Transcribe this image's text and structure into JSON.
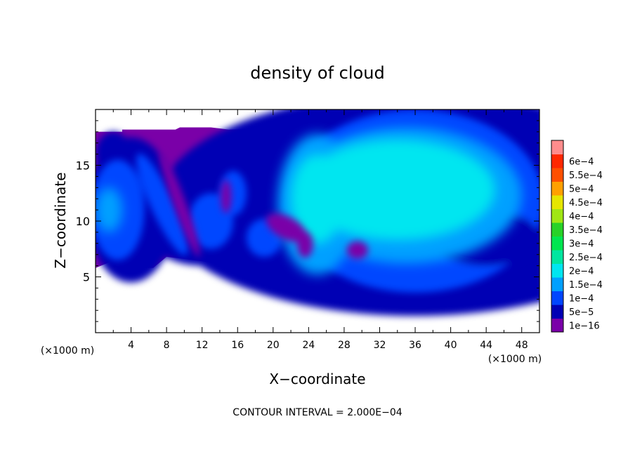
{
  "chart_data": {
    "type": "heatmap",
    "title": "density of cloud",
    "xlabel": "X−coordinate",
    "ylabel": "Z−coordinate",
    "x_unit_left": "(×1000 m)",
    "x_unit_right": "(×1000 m)",
    "xlim": [
      0,
      50
    ],
    "ylim": [
      0,
      20
    ],
    "x_ticks": [
      4,
      8,
      12,
      16,
      20,
      24,
      28,
      32,
      36,
      40,
      44,
      48
    ],
    "y_ticks": [
      5,
      10,
      15
    ],
    "footer": "CONTOUR INTERVAL = 2.000E−04",
    "colorbar": {
      "levels": [
        "1e−16",
        "5e−5",
        "1e−4",
        "1.5e−4",
        "2e−4",
        "2.5e−4",
        "3e−4",
        "3.5e−4",
        "4e−4",
        "4.5e−4",
        "5e−4",
        "5.5e−4",
        "6e−4"
      ],
      "colors": [
        "#7a00a8",
        "#0000b4",
        "#0046ff",
        "#00a0ff",
        "#00e6f0",
        "#00e6a0",
        "#00e650",
        "#28d228",
        "#a0e614",
        "#e6e600",
        "#ffa000",
        "#ff5000",
        "#ff2800",
        "#ff8c8c"
      ]
    },
    "field": {
      "cloud_layer_z": [
        6,
        18
      ],
      "regions": [
        {
          "level": "1e−16",
          "note": "outer envelope 6–18 km across domain"
        },
        {
          "level": "5e−5",
          "x": [
            0,
            50
          ],
          "z": [
            6.5,
            17
          ]
        },
        {
          "level": "1e−4",
          "x": [
            0,
            50
          ],
          "z": [
            7,
            16
          ]
        },
        {
          "level": "1.5e−4",
          "x": [
            20,
            50
          ],
          "z": [
            7.5,
            16
          ]
        },
        {
          "level": "2e−4",
          "x": [
            22,
            46
          ],
          "z": [
            10,
            15.5
          ]
        }
      ]
    }
  }
}
